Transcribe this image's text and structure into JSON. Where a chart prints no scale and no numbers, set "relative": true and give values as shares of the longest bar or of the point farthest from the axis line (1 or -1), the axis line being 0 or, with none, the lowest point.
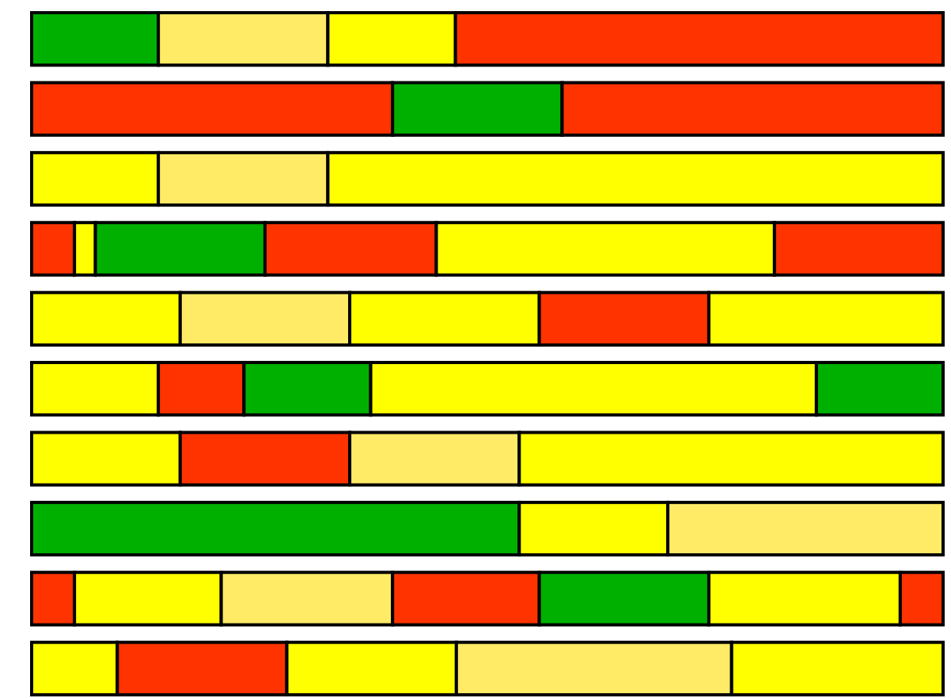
{
  "chart_data": {
    "type": "bar",
    "orientation": "horizontal",
    "stacked": true,
    "relative": true,
    "categories": [
      null,
      null,
      null,
      null,
      null,
      null,
      null,
      null,
      null,
      null
    ],
    "series": [
      {
        "values": [
          0.139,
          0.396,
          0.139,
          0.047,
          0.163,
          0.139,
          0.163,
          0.535,
          0.047,
          0.094
        ],
        "colors": [
          "#00b000",
          "#ff3300",
          "#ffff00",
          "#ff3300",
          "#ffff00",
          "#ffff00",
          "#ffff00",
          "#00b000",
          "#ff3300",
          "#ffff00"
        ]
      },
      {
        "values": [
          0.186,
          0.186,
          0.186,
          0.023,
          0.186,
          0.094,
          0.186,
          0.163,
          0.161,
          0.186
        ],
        "colors": [
          "#ffeb66",
          "#00b000",
          "#ffeb66",
          "#ffff00",
          "#ffeb66",
          "#ff3300",
          "#ff3300",
          "#ffff00",
          "#ffff00",
          "#ff3300"
        ]
      },
      {
        "values": [
          0.14,
          0.418,
          0.675,
          0.186,
          0.208,
          0.139,
          0.186,
          0.302,
          0.188,
          0.186
        ],
        "colors": [
          "#ffff00",
          "#ff3300",
          "#ffff00",
          "#00b000",
          "#ffff00",
          "#00b000",
          "#ffeb66",
          "#ffeb66",
          "#ffeb66",
          "#ffff00"
        ]
      },
      {
        "values": [
          0.535,
          null,
          null,
          0.188,
          0.186,
          0.489,
          0.465,
          null,
          0.161,
          0.302
        ],
        "colors": [
          "#ff3300",
          null,
          null,
          "#ff3300",
          "#ff3300",
          "#ffff00",
          "#ffff00",
          null,
          "#ff3300",
          "#ffeb66"
        ]
      },
      {
        "values": [
          null,
          null,
          null,
          0.371,
          0.257,
          0.139,
          null,
          null,
          0.186,
          0.232
        ],
        "colors": [
          null,
          null,
          null,
          "#ffff00",
          "#ffff00",
          "#00b000",
          null,
          null,
          "#00b000",
          "#ffff00"
        ]
      },
      {
        "values": [
          null,
          null,
          null,
          0.185,
          null,
          null,
          null,
          null,
          0.21,
          null
        ],
        "colors": [
          null,
          null,
          null,
          "#ff3300",
          null,
          null,
          null,
          null,
          "#ffff00",
          null
        ]
      },
      {
        "values": [
          null,
          null,
          null,
          null,
          null,
          null,
          null,
          null,
          0.047,
          null
        ],
        "colors": [
          null,
          null,
          null,
          null,
          null,
          null,
          null,
          null,
          "#ff3300",
          null
        ]
      }
    ]
  }
}
